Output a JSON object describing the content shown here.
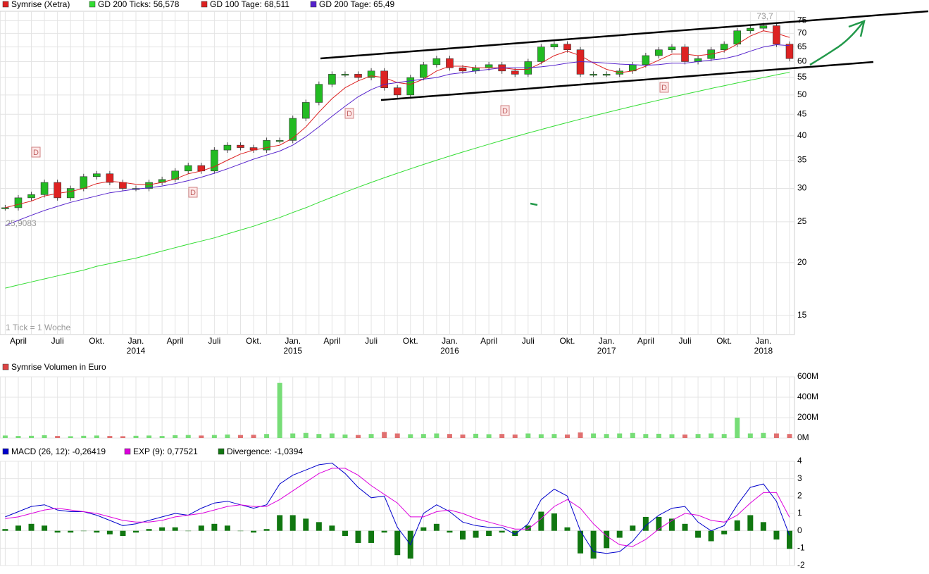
{
  "chart_data": [
    {
      "type": "candlestick",
      "log_scale": true,
      "grid": true,
      "up_color": "#22bb22",
      "down_color": "#dd2222",
      "categories": [
        null,
        "April",
        null,
        null,
        "Juli",
        null,
        null,
        "Okt.",
        null,
        null,
        "Jan.",
        null,
        null,
        "April",
        null,
        null,
        "Juli",
        null,
        null,
        "Okt.",
        null,
        null,
        "Jan.",
        null,
        null,
        "April",
        null,
        null,
        "Juli",
        null,
        null,
        "Okt.",
        null,
        null,
        "Jan.",
        null,
        null,
        "April",
        null,
        null,
        "Juli",
        null,
        null,
        "Okt.",
        null,
        null,
        "Jan.",
        null,
        null,
        "April",
        null,
        null,
        "Juli",
        null,
        null,
        "Okt.",
        null,
        null,
        "Jan.",
        null,
        null
      ],
      "x_year_labels": [
        "2014",
        "2015",
        "2016",
        "2017",
        "2018"
      ],
      "ylim": [
        13.5,
        79
      ],
      "yticks": [
        15,
        20,
        25,
        30,
        35,
        40,
        45,
        50,
        55,
        60,
        65,
        70,
        75
      ],
      "annotations": [
        "73,7",
        "25,9083",
        "1 Tick = 1 Woche"
      ],
      "dividend_markers": [
        "D",
        "D",
        "D",
        "D",
        "D"
      ],
      "series": [
        {
          "name": "Symrise (Xetra)",
          "type": "candlestick",
          "color": "#dd2222",
          "values": [
            27,
            28.5,
            29,
            31,
            28.5,
            30,
            32,
            32.5,
            31,
            30,
            30,
            31,
            31.5,
            33,
            34,
            33,
            37,
            38,
            37.5,
            37,
            39,
            39,
            44,
            48,
            53,
            56,
            56,
            55,
            57,
            52,
            50,
            55,
            59,
            61,
            58,
            57,
            58,
            59,
            57,
            56,
            60,
            65,
            66,
            64,
            56,
            56,
            56,
            57,
            59,
            62,
            64,
            65,
            60,
            61,
            64,
            66,
            71,
            72,
            73,
            66,
            61
          ]
        },
        {
          "name": "GD 200 Ticks: 56,578",
          "type": "line",
          "color": "#33dd33",
          "values": [
            17.4,
            17.7,
            18.0,
            18.3,
            18.6,
            18.9,
            19.2,
            19.6,
            19.9,
            20.2,
            20.5,
            20.9,
            21.3,
            21.7,
            22.1,
            22.5,
            22.9,
            23.4,
            23.9,
            24.4,
            25.0,
            25.6,
            26.3,
            27.0,
            27.8,
            28.6,
            29.4,
            30.2,
            31.0,
            31.8,
            32.6,
            33.4,
            34.2,
            35.0,
            35.8,
            36.6,
            37.4,
            38.2,
            39.0,
            39.8,
            40.6,
            41.4,
            42.2,
            43.0,
            43.8,
            44.6,
            45.4,
            46.2,
            47.0,
            47.8,
            48.6,
            49.4,
            50.2,
            51.0,
            51.8,
            52.6,
            53.4,
            54.2,
            55.0,
            55.8,
            56.6
          ]
        },
        {
          "name": "GD 100 Tage: 68,511",
          "type": "line",
          "color": "#dd2222",
          "values": [
            27,
            27.5,
            28,
            28.8,
            29.2,
            29.5,
            30,
            30.8,
            31.2,
            31,
            30.7,
            30.6,
            31,
            31.6,
            32.5,
            33,
            33.8,
            35,
            36.2,
            37,
            37.5,
            38,
            39.5,
            42,
            45.5,
            49,
            52,
            54,
            55.5,
            55,
            53.5,
            53,
            54.5,
            57,
            58.5,
            58.5,
            58,
            58,
            58,
            57.5,
            57.5,
            59.5,
            62,
            63.5,
            62,
            59.5,
            57.5,
            56.5,
            57,
            58.5,
            60.5,
            62.5,
            62.5,
            62,
            62.5,
            63.5,
            66,
            69,
            71,
            70,
            68.5
          ]
        },
        {
          "name": "GD 200 Tage: 65,49",
          "type": "line",
          "color": "#5522cc",
          "values": [
            24.5,
            25.2,
            25.9,
            26.6,
            27.2,
            27.8,
            28.3,
            28.8,
            29.3,
            29.6,
            29.9,
            30.1,
            30.4,
            30.8,
            31.3,
            31.9,
            32.6,
            33.4,
            34.3,
            35.2,
            36,
            36.8,
            38,
            39.8,
            42,
            44.5,
            47,
            49.5,
            51.5,
            53,
            53.5,
            54,
            54.5,
            55,
            56,
            56.5,
            57,
            57.5,
            58,
            58,
            58,
            58.3,
            58.8,
            59.5,
            60,
            59.8,
            59.5,
            59.2,
            59,
            58.8,
            59,
            59.5,
            59.5,
            60,
            60.5,
            61,
            62,
            63.5,
            65,
            65.8,
            65.5
          ]
        }
      ]
    },
    {
      "type": "bar",
      "title": "Symrise Volumen in Euro",
      "color": "#dd4444",
      "grid": true,
      "up_color": "#77dd77",
      "down_color": "#e07070",
      "ylim": [
        0,
        600000000
      ],
      "yticks": [
        {
          "value": 0,
          "label": "0M"
        },
        {
          "value": 200000000,
          "label": "200M"
        },
        {
          "value": 400000000,
          "label": "400M"
        },
        {
          "value": 600000000,
          "label": "600M"
        }
      ],
      "values": [
        25000000.0,
        20000000.0,
        22000000.0,
        28000000.0,
        20000000.0,
        18000000.0,
        22000000.0,
        25000000.0,
        20000000.0,
        18000000.0,
        22000000.0,
        25000000.0,
        20000000.0,
        28000000.0,
        30000000.0,
        25000000.0,
        30000000.0,
        35000000.0,
        30000000.0,
        32000000.0,
        40000000.0,
        540000000.0,
        45000000.0,
        50000000.0,
        40000000.0,
        45000000.0,
        35000000.0,
        30000000.0,
        40000000.0,
        60000000.0,
        45000000.0,
        38000000.0,
        40000000.0,
        45000000.0,
        40000000.0,
        35000000.0,
        42000000.0,
        38000000.0,
        40000000.0,
        35000000.0,
        45000000.0,
        38000000.0,
        40000000.0,
        35000000.0,
        55000000.0,
        45000000.0,
        40000000.0,
        45000000.0,
        50000000.0,
        40000000.0,
        42000000.0,
        38000000.0,
        35000000.0,
        40000000.0,
        45000000.0,
        40000000.0,
        200000000.0,
        45000000.0,
        50000000.0,
        45000000.0,
        40000000.0
      ]
    },
    {
      "type": "line",
      "grid": true,
      "ylim": [
        -2,
        4
      ],
      "yticks": [
        -2,
        -1,
        0,
        1,
        2,
        3,
        4
      ],
      "series": [
        {
          "name": "MACD (26, 12): -0,26419",
          "type": "line",
          "color": "#0000cc",
          "values": [
            0.8,
            1.1,
            1.4,
            1.5,
            1.2,
            1.1,
            1.1,
            0.9,
            0.6,
            0.3,
            0.4,
            0.6,
            0.8,
            1.0,
            0.9,
            1.3,
            1.6,
            1.7,
            1.5,
            1.3,
            1.5,
            2.7,
            3.2,
            3.5,
            3.8,
            3.9,
            3.3,
            2.5,
            1.9,
            2.0,
            0.2,
            -0.8,
            1.0,
            1.5,
            1.1,
            0.5,
            0.3,
            0.2,
            0.2,
            -0.2,
            0.4,
            1.8,
            2.4,
            2.0,
            0.0,
            -1.2,
            -1.3,
            -1.2,
            -0.6,
            0.3,
            0.9,
            1.3,
            1.4,
            0.5,
            0.0,
            0.3,
            1.5,
            2.5,
            2.7,
            1.7,
            -0.26419
          ]
        },
        {
          "name": "EXP (9): 0,77521",
          "type": "line",
          "color": "#dd00dd",
          "values": [
            0.7,
            0.8,
            1.0,
            1.2,
            1.3,
            1.2,
            1.1,
            1.0,
            0.8,
            0.6,
            0.5,
            0.5,
            0.6,
            0.8,
            0.9,
            1.0,
            1.2,
            1.4,
            1.5,
            1.4,
            1.4,
            1.8,
            2.3,
            2.8,
            3.3,
            3.6,
            3.6,
            3.2,
            2.6,
            2.1,
            1.6,
            0.8,
            0.8,
            1.1,
            1.2,
            1.0,
            0.7,
            0.5,
            0.3,
            0.1,
            0.1,
            0.7,
            1.4,
            1.8,
            1.3,
            0.4,
            -0.3,
            -0.8,
            -0.9,
            -0.5,
            0.1,
            0.6,
            1.0,
            0.9,
            0.6,
            0.5,
            0.9,
            1.6,
            2.2,
            2.2,
            0.77521
          ]
        },
        {
          "name": "Divergence: -1,0394",
          "type": "bar",
          "color": "#117711",
          "values": [
            0.1,
            0.3,
            0.4,
            0.3,
            -0.1,
            -0.1,
            0,
            -0.1,
            -0.2,
            -0.3,
            -0.1,
            0.1,
            0.2,
            0.2,
            0,
            0.3,
            0.4,
            0.3,
            0,
            -0.1,
            0.1,
            0.9,
            0.9,
            0.7,
            0.5,
            0.3,
            -0.3,
            -0.7,
            -0.7,
            -0.1,
            -1.4,
            -1.6,
            0.2,
            0.4,
            -0.1,
            -0.5,
            -0.4,
            -0.3,
            -0.1,
            -0.3,
            0.3,
            1.1,
            1.0,
            0.2,
            -1.3,
            -1.6,
            -1.0,
            -0.4,
            0.3,
            0.8,
            0.8,
            0.7,
            0.4,
            -0.4,
            -0.6,
            -0.2,
            0.6,
            0.9,
            0.5,
            -0.5,
            -1.0394
          ]
        }
      ]
    }
  ]
}
